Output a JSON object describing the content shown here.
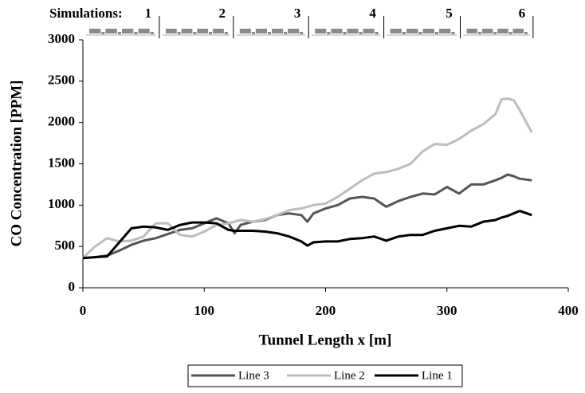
{
  "chart_data": {
    "type": "line",
    "x_label": "Tunnel Length x [m]",
    "y_label": "CO Concentration [PPM]",
    "segments_label": "Simulations:",
    "segments": [
      "1",
      "2",
      "3",
      "4",
      "5",
      "6"
    ],
    "segment_ends": [
      63,
      124,
      186,
      248,
      311,
      371
    ],
    "x": [
      0,
      10,
      20,
      30,
      40,
      50,
      60,
      70,
      80,
      90,
      100,
      110,
      120,
      125,
      130,
      140,
      150,
      160,
      170,
      180,
      185,
      190,
      200,
      210,
      220,
      230,
      240,
      250,
      260,
      270,
      280,
      290,
      300,
      310,
      320,
      330,
      340,
      345,
      350,
      355,
      360,
      370
    ],
    "series": [
      {
        "name": "Line 3",
        "color": "#555555",
        "values": [
          360,
          370,
          390,
          450,
          520,
          570,
          600,
          650,
          700,
          720,
          780,
          840,
          780,
          660,
          760,
          800,
          820,
          880,
          900,
          880,
          800,
          900,
          960,
          1000,
          1080,
          1100,
          1080,
          980,
          1050,
          1100,
          1140,
          1130,
          1220,
          1140,
          1250,
          1250,
          1300,
          1330,
          1370,
          1350,
          1320,
          1300
        ]
      },
      {
        "name": "Line 2",
        "color": "#bdbdbd",
        "values": [
          360,
          500,
          600,
          560,
          570,
          620,
          780,
          780,
          640,
          620,
          680,
          760,
          780,
          800,
          820,
          800,
          830,
          880,
          940,
          960,
          980,
          1000,
          1020,
          1100,
          1200,
          1300,
          1380,
          1400,
          1440,
          1500,
          1650,
          1740,
          1730,
          1800,
          1900,
          1980,
          2100,
          2280,
          2290,
          2270,
          2150,
          1880
        ]
      },
      {
        "name": "Line 1",
        "color": "#000000",
        "values": [
          360,
          370,
          380,
          550,
          720,
          740,
          730,
          700,
          760,
          790,
          790,
          780,
          700,
          690,
          690,
          690,
          680,
          660,
          620,
          560,
          510,
          550,
          560,
          560,
          590,
          600,
          620,
          570,
          620,
          640,
          640,
          690,
          720,
          750,
          740,
          800,
          820,
          850,
          870,
          900,
          930,
          880
        ]
      }
    ],
    "xlim": [
      0,
      400
    ],
    "xticks": [
      0,
      100,
      200,
      300,
      400
    ],
    "ylim": [
      0,
      3000
    ],
    "yticks": [
      0,
      500,
      1000,
      1500,
      2000,
      2500,
      3000
    ],
    "grid": false
  }
}
